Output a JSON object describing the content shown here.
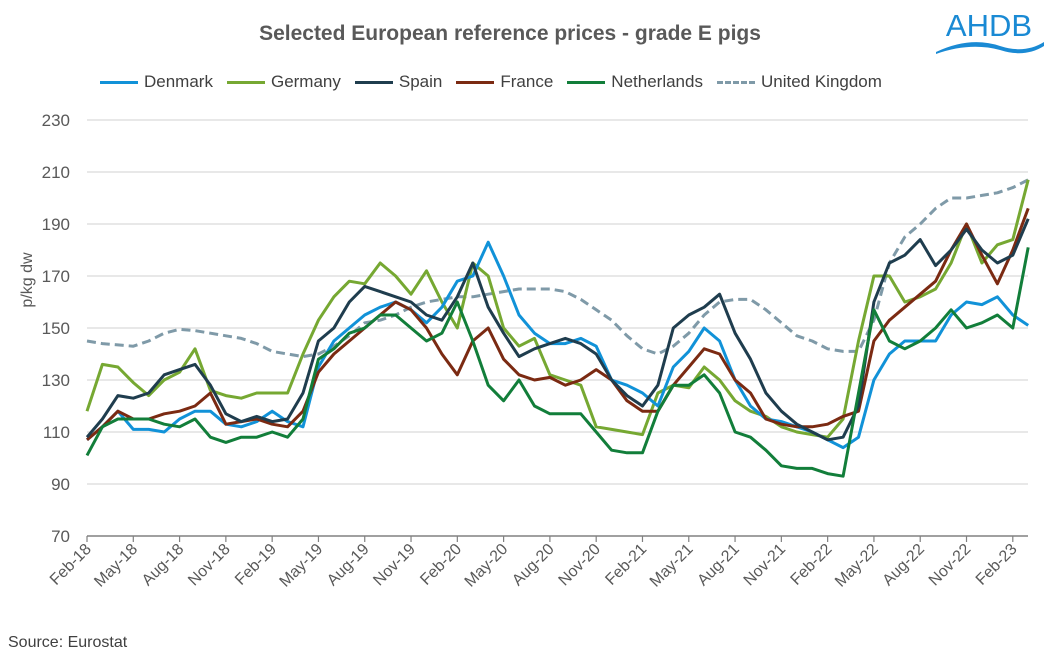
{
  "chart_data": {
    "type": "line",
    "title": "Selected European reference prices - grade E pigs",
    "ylabel": "p/kg dw",
    "xlabel": "",
    "ylim": [
      70,
      230
    ],
    "yticks": [
      70,
      90,
      110,
      130,
      150,
      170,
      190,
      210,
      230
    ],
    "grid": true,
    "legend_position": "top",
    "xtick_labels": [
      "Feb-18",
      "May-18",
      "Aug-18",
      "Nov-18",
      "Feb-19",
      "May-19",
      "Aug-19",
      "Nov-19",
      "Feb-20",
      "May-20",
      "Aug-20",
      "Nov-20",
      "Feb-21",
      "May-21",
      "Aug-21",
      "Nov-21",
      "Feb-22",
      "May-22",
      "Aug-22",
      "Nov-22",
      "Feb-23"
    ],
    "x": [
      "Feb-18",
      "Mar-18",
      "Apr-18",
      "May-18",
      "Jun-18",
      "Jul-18",
      "Aug-18",
      "Sep-18",
      "Oct-18",
      "Nov-18",
      "Dec-18",
      "Jan-19",
      "Feb-19",
      "Mar-19",
      "Apr-19",
      "May-19",
      "Jun-19",
      "Jul-19",
      "Aug-19",
      "Sep-19",
      "Oct-19",
      "Nov-19",
      "Dec-19",
      "Jan-20",
      "Feb-20",
      "Mar-20",
      "Apr-20",
      "May-20",
      "Jun-20",
      "Jul-20",
      "Aug-20",
      "Sep-20",
      "Oct-20",
      "Nov-20",
      "Dec-20",
      "Jan-21",
      "Feb-21",
      "Mar-21",
      "Apr-21",
      "May-21",
      "Jun-21",
      "Jul-21",
      "Aug-21",
      "Sep-21",
      "Oct-21",
      "Nov-21",
      "Dec-21",
      "Jan-22",
      "Feb-22",
      "Mar-22",
      "Apr-22",
      "May-22",
      "Jun-22",
      "Jul-22",
      "Aug-22",
      "Sep-22",
      "Oct-22",
      "Nov-22",
      "Dec-22",
      "Jan-23",
      "Feb-23",
      "Mar-23"
    ],
    "series": [
      {
        "name": "Denmark",
        "color": "#1192d8",
        "dashed": false,
        "values": [
          107,
          112,
          118,
          111,
          111,
          110,
          115,
          118,
          118,
          113,
          112,
          114,
          118,
          114,
          112,
          135,
          145,
          150,
          155,
          158,
          160,
          157,
          152,
          158,
          168,
          170,
          183,
          170,
          155,
          148,
          144,
          144,
          146,
          143,
          130,
          128,
          125,
          120,
          135,
          141,
          150,
          145,
          130,
          120,
          115,
          114,
          112,
          110,
          107,
          104,
          108,
          130,
          140,
          145,
          145,
          145,
          155,
          160,
          159,
          162,
          155,
          151
        ]
      },
      {
        "name": "Germany",
        "color": "#76a832",
        "dashed": false,
        "values": [
          118,
          136,
          135,
          129,
          124,
          130,
          133,
          142,
          126,
          124,
          123,
          125,
          125,
          125,
          140,
          153,
          162,
          168,
          167,
          175,
          170,
          163,
          172,
          160,
          150,
          175,
          170,
          150,
          143,
          146,
          132,
          130,
          128,
          112,
          111,
          110,
          109,
          125,
          128,
          127,
          135,
          130,
          122,
          118,
          116,
          112,
          110,
          109,
          108,
          115,
          145,
          170,
          170,
          160,
          162,
          165,
          175,
          190,
          175,
          182,
          184,
          207
        ]
      },
      {
        "name": "Spain",
        "color": "#1f3d4e",
        "dashed": false,
        "values": [
          108,
          115,
          124,
          123,
          125,
          132,
          134,
          136,
          128,
          117,
          114,
          116,
          114,
          115,
          125,
          145,
          150,
          160,
          166,
          164,
          162,
          160,
          155,
          153,
          162,
          175,
          158,
          148,
          139,
          142,
          144,
          146,
          144,
          140,
          130,
          124,
          120,
          128,
          150,
          155,
          158,
          163,
          148,
          138,
          125,
          118,
          113,
          110,
          107,
          108,
          120,
          160,
          175,
          178,
          184,
          174,
          180,
          188,
          180,
          175,
          178,
          192
        ]
      },
      {
        "name": "France",
        "color": "#7b2a12",
        "dashed": false,
        "values": [
          107,
          112,
          118,
          115,
          115,
          117,
          118,
          120,
          125,
          113,
          114,
          115,
          113,
          112,
          118,
          133,
          140,
          145,
          150,
          155,
          160,
          157,
          150,
          140,
          132,
          145,
          150,
          138,
          132,
          130,
          131,
          128,
          130,
          134,
          130,
          122,
          118,
          118,
          128,
          135,
          142,
          140,
          130,
          125,
          115,
          113,
          112,
          112,
          113,
          116,
          118,
          145,
          153,
          158,
          163,
          168,
          180,
          190,
          178,
          167,
          180,
          196
        ]
      },
      {
        "name": "Netherlands",
        "color": "#127e3a",
        "dashed": false,
        "values": [
          101,
          112,
          115,
          115,
          115,
          113,
          112,
          115,
          108,
          106,
          108,
          108,
          110,
          108,
          115,
          138,
          142,
          148,
          150,
          155,
          155,
          150,
          145,
          148,
          160,
          145,
          128,
          122,
          130,
          120,
          117,
          117,
          117,
          110,
          103,
          102,
          102,
          118,
          128,
          128,
          132,
          125,
          110,
          108,
          103,
          97,
          96,
          96,
          94,
          93,
          125,
          157,
          145,
          142,
          145,
          150,
          157,
          150,
          152,
          155,
          150,
          181
        ]
      },
      {
        "name": "United Kingdom",
        "color": "#7f9aa8",
        "dashed": true,
        "values": [
          145,
          144,
          143.5,
          143,
          145,
          148,
          149.5,
          149,
          148,
          147,
          146,
          144,
          141,
          140,
          139,
          140,
          143,
          147,
          152,
          153,
          155,
          158,
          160,
          161,
          162,
          162,
          163,
          164,
          165,
          165,
          165,
          164,
          161,
          157,
          153,
          147,
          142,
          140,
          143,
          148,
          155,
          160,
          161,
          161,
          157,
          152,
          147,
          145,
          142,
          141,
          141,
          153,
          175,
          185,
          190,
          196,
          200,
          200,
          201,
          202,
          204,
          207
        ]
      }
    ]
  },
  "source": "Source: Eurostat",
  "logo": {
    "text": "AHDB",
    "color": "#1a8ad4"
  }
}
